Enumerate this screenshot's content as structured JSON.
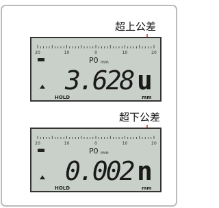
{
  "panels": [
    {
      "annotation": "超上公差",
      "scale_labels": [
        "20",
        "10",
        "0",
        "10",
        "20"
      ],
      "mode": "P0",
      "unit_small": "mm",
      "reading": "3.628",
      "indicator": "u",
      "hold": "HOLD",
      "unit": "mm"
    },
    {
      "annotation": "超下公差",
      "scale_labels": [
        "20",
        "10",
        "0",
        "10",
        "20"
      ],
      "mode": "P0",
      "unit_small": "mm",
      "reading": "0.002",
      "indicator": "n",
      "hold": "HOLD",
      "unit": "mm"
    }
  ]
}
